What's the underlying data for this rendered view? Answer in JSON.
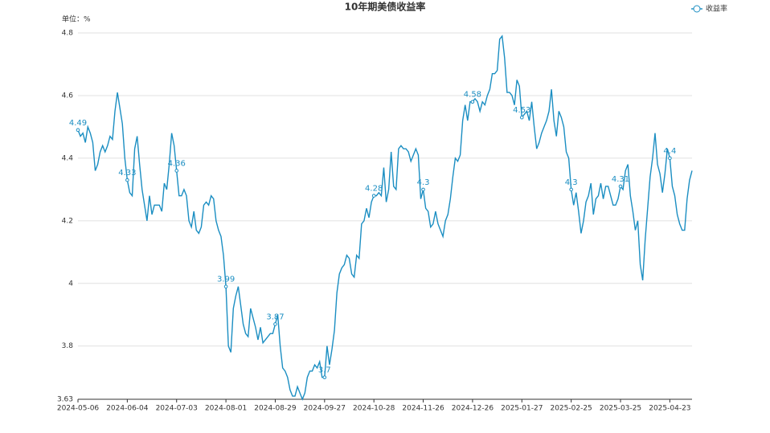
{
  "chart_data": {
    "type": "line",
    "title": "10年期美债收益率",
    "y_unit_label": "单位：%",
    "categories": [
      "2024-05-06",
      null,
      null,
      null,
      null,
      null,
      null,
      null,
      null,
      null,
      null,
      null,
      null,
      null,
      null,
      null,
      null,
      null,
      null,
      null,
      "2024-06-04",
      null,
      null,
      null,
      null,
      null,
      null,
      null,
      null,
      null,
      null,
      null,
      null,
      null,
      null,
      null,
      null,
      null,
      null,
      null,
      "2024-07-03",
      null,
      null,
      null,
      null,
      null,
      null,
      null,
      null,
      null,
      null,
      null,
      null,
      null,
      null,
      null,
      null,
      null,
      null,
      null,
      "2024-08-01",
      null,
      null,
      null,
      null,
      null,
      null,
      null,
      null,
      null,
      null,
      null,
      null,
      null,
      null,
      null,
      null,
      null,
      null,
      null,
      "2024-08-29",
      null,
      null,
      null,
      null,
      null,
      null,
      null,
      null,
      null,
      null,
      null,
      null,
      null,
      null,
      null,
      null,
      null,
      null,
      null,
      "2024-09-27",
      null,
      null,
      null,
      null,
      null,
      null,
      null,
      null,
      null,
      null,
      null,
      null,
      null,
      null,
      null,
      null,
      null,
      null,
      null,
      "2024-10-28",
      null,
      null,
      null,
      null,
      null,
      null,
      null,
      null,
      null,
      null,
      null,
      null,
      null,
      null,
      null,
      null,
      null,
      null,
      null,
      "2024-11-26",
      null,
      null,
      null,
      null,
      null,
      null,
      null,
      null,
      null,
      null,
      null,
      null,
      null,
      null,
      null,
      null,
      null,
      null,
      null,
      "2024-12-26",
      null,
      null,
      null,
      null,
      null,
      null,
      null,
      null,
      null,
      null,
      null,
      null,
      null,
      null,
      null,
      null,
      null,
      null,
      null,
      "2025-01-27",
      null,
      null,
      null,
      null,
      null,
      null,
      null,
      null,
      null,
      null,
      null,
      null,
      null,
      null,
      null,
      null,
      null,
      null,
      null,
      "2025-02-25",
      null,
      null,
      null,
      null,
      null,
      null,
      null,
      null,
      null,
      null,
      null,
      null,
      null,
      null,
      null,
      null,
      null,
      null,
      null,
      "2025-03-25",
      null,
      null,
      null,
      null,
      null,
      null,
      null,
      null,
      null,
      null,
      null,
      null,
      null,
      null,
      null,
      null,
      null,
      null,
      null,
      "2025-04-23",
      null,
      null,
      null,
      null,
      null,
      null,
      null,
      null,
      null
    ],
    "series": [
      {
        "name": "收益率",
        "color": "#1b8ec2",
        "values": [
          4.49,
          4.47,
          4.48,
          4.45,
          4.5,
          4.48,
          4.45,
          4.36,
          4.38,
          4.42,
          4.44,
          4.42,
          4.44,
          4.47,
          4.46,
          4.55,
          4.61,
          4.56,
          4.51,
          4.4,
          4.33,
          4.29,
          4.28,
          4.43,
          4.47,
          4.38,
          4.3,
          4.25,
          4.2,
          4.28,
          4.22,
          4.25,
          4.25,
          4.25,
          4.23,
          4.32,
          4.3,
          4.38,
          4.48,
          4.44,
          4.36,
          4.28,
          4.28,
          4.3,
          4.28,
          4.2,
          4.18,
          4.23,
          4.17,
          4.16,
          4.18,
          4.25,
          4.26,
          4.25,
          4.28,
          4.27,
          4.2,
          4.17,
          4.15,
          4.09,
          3.99,
          3.8,
          3.78,
          3.92,
          3.96,
          3.99,
          3.93,
          3.87,
          3.84,
          3.83,
          3.92,
          3.89,
          3.86,
          3.82,
          3.86,
          3.81,
          3.82,
          3.83,
          3.84,
          3.84,
          3.87,
          3.9,
          3.8,
          3.73,
          3.72,
          3.7,
          3.66,
          3.64,
          3.64,
          3.67,
          3.65,
          3.63,
          3.65,
          3.7,
          3.72,
          3.72,
          3.74,
          3.73,
          3.75,
          3.7,
          3.7,
          3.8,
          3.74,
          3.79,
          3.85,
          3.97,
          4.03,
          4.05,
          4.06,
          4.09,
          4.08,
          4.03,
          4.02,
          4.09,
          4.08,
          4.19,
          4.2,
          4.24,
          4.21,
          4.26,
          4.28,
          4.28,
          4.29,
          4.28,
          4.37,
          4.26,
          4.3,
          4.42,
          4.31,
          4.3,
          4.43,
          4.44,
          4.43,
          4.43,
          4.42,
          4.39,
          4.41,
          4.43,
          4.41,
          4.27,
          4.3,
          4.24,
          4.23,
          4.18,
          4.19,
          4.23,
          4.19,
          4.17,
          4.15,
          4.2,
          4.22,
          4.27,
          4.34,
          4.4,
          4.39,
          4.41,
          4.52,
          4.57,
          4.52,
          4.58,
          4.58,
          4.59,
          4.58,
          4.55,
          4.58,
          4.57,
          4.6,
          4.62,
          4.67,
          4.67,
          4.68,
          4.78,
          4.79,
          4.72,
          4.61,
          4.61,
          4.6,
          4.57,
          4.65,
          4.63,
          4.53,
          4.54,
          4.55,
          4.52,
          4.58,
          4.5,
          4.43,
          4.45,
          4.48,
          4.5,
          4.52,
          4.55,
          4.62,
          4.52,
          4.47,
          4.55,
          4.53,
          4.5,
          4.42,
          4.4,
          4.3,
          4.25,
          4.29,
          4.23,
          4.16,
          4.2,
          4.26,
          4.28,
          4.32,
          4.22,
          4.27,
          4.28,
          4.32,
          4.27,
          4.31,
          4.31,
          4.28,
          4.25,
          4.25,
          4.27,
          4.31,
          4.3,
          4.36,
          4.38,
          4.28,
          4.23,
          4.17,
          4.2,
          4.06,
          4.01,
          4.14,
          4.24,
          4.34,
          4.4,
          4.48,
          4.38,
          4.35,
          4.29,
          4.35,
          4.43,
          4.4,
          4.31,
          4.28,
          4.22,
          4.19,
          4.17,
          4.17,
          4.27,
          4.33,
          4.36
        ]
      }
    ],
    "ylim": [
      3.63,
      4.8
    ],
    "yticks": [
      3.63,
      3.8,
      4,
      4.2,
      4.4,
      4.6,
      4.8
    ],
    "grid": true,
    "legend": "top-right"
  }
}
